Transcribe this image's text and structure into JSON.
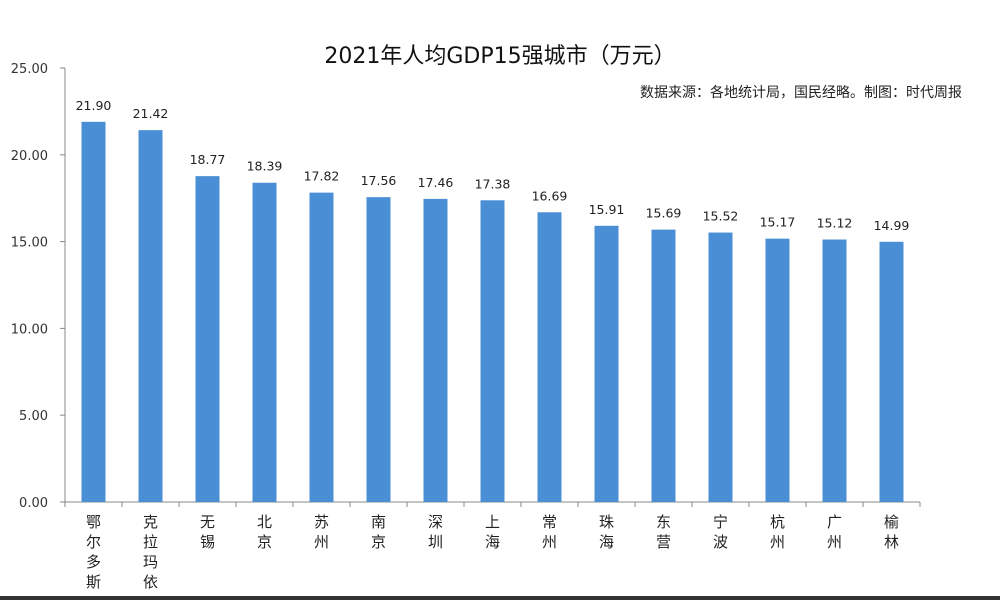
{
  "chart_data": {
    "type": "bar",
    "title": "2021年人均GDP15强城市（万元）",
    "source": "数据来源：各地统计局，国民经略。制图：时代周报",
    "categories": [
      "鄂尔多斯",
      "克拉玛依",
      "无锡",
      "北京",
      "苏州",
      "南京",
      "深圳",
      "上海",
      "常州",
      "珠海",
      "东营",
      "宁波",
      "杭州",
      "广州",
      "榆林"
    ],
    "values": [
      21.9,
      21.42,
      18.77,
      18.39,
      17.82,
      17.56,
      17.46,
      17.38,
      16.69,
      15.91,
      15.69,
      15.52,
      15.17,
      15.12,
      14.99
    ],
    "ylim": [
      0,
      25
    ],
    "yticks": [
      "0.00",
      "5.00",
      "10.00",
      "15.00",
      "20.00",
      "25.00"
    ],
    "xlabel": "",
    "ylabel": "",
    "grid": false,
    "bar_color": "#4a8fd6"
  }
}
